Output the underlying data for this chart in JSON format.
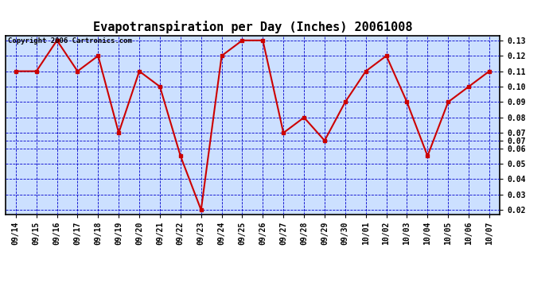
{
  "title": "Evapotranspiration per Day (Inches) 20061008",
  "copyright": "Copyright 2006 Cartronics.com",
  "x_labels": [
    "09/14",
    "09/15",
    "09/16",
    "09/17",
    "09/18",
    "09/19",
    "09/20",
    "09/21",
    "09/22",
    "09/23",
    "09/24",
    "09/25",
    "09/26",
    "09/27",
    "09/28",
    "09/29",
    "09/30",
    "10/01",
    "10/02",
    "10/03",
    "10/04",
    "10/05",
    "10/06",
    "10/07"
  ],
  "y_values": [
    0.11,
    0.11,
    0.13,
    0.11,
    0.12,
    0.07,
    0.11,
    0.1,
    0.055,
    0.02,
    0.12,
    0.13,
    0.13,
    0.07,
    0.08,
    0.065,
    0.09,
    0.11,
    0.12,
    0.09,
    0.055,
    0.09,
    0.1,
    0.11
  ],
  "line_color": "#cc0000",
  "marker_color": "#cc0000",
  "fig_bg_color": "#ffffff",
  "plot_bg_color": "#cce0ff",
  "grid_color": "#0000cc",
  "border_color": "#000000",
  "y_min": 0.02,
  "y_max": 0.13,
  "y_tick_positions": [
    0.02,
    0.03,
    0.04,
    0.05,
    0.06,
    0.065,
    0.07,
    0.08,
    0.09,
    0.1,
    0.11,
    0.12,
    0.13
  ],
  "y_tick_labels": [
    "0.02",
    "0.03",
    "0.04",
    "0.05",
    "0.06",
    "0.07",
    "0.07",
    "0.08",
    "0.09",
    "0.10",
    "0.11",
    "0.12",
    "0.13"
  ],
  "title_fontsize": 11,
  "copyright_fontsize": 6.5,
  "tick_fontsize": 7,
  "marker_size": 3,
  "line_width": 1.5
}
